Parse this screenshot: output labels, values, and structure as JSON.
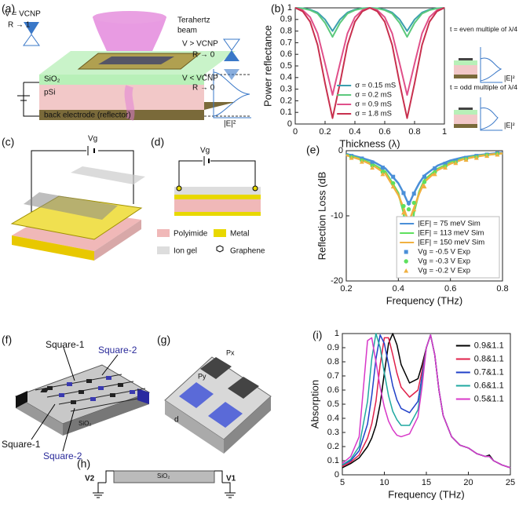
{
  "chart_data": [
    {
      "type": "line",
      "panel_label": "(b)",
      "xlabel": "Thickness (λ)",
      "ylabel": "Power reflectance",
      "x": [
        0,
        0.05,
        0.1,
        0.15,
        0.2,
        0.25,
        0.3,
        0.35,
        0.4,
        0.45,
        0.5,
        0.55,
        0.6,
        0.65,
        0.7,
        0.75,
        0.8,
        0.85,
        0.9,
        0.95,
        1
      ],
      "xlim": [
        0,
        1
      ],
      "xticks": [
        0,
        0.2,
        0.4,
        0.6,
        0.8,
        1
      ],
      "ylim": [
        0,
        1
      ],
      "yticks": [
        0,
        0.1,
        0.2,
        0.3,
        0.4,
        0.5,
        0.6,
        0.7,
        0.8,
        0.9,
        1
      ],
      "legend": "lower center",
      "series": [
        {
          "name": "σ = 0.15 mS",
          "color": "#3b9fae",
          "values": [
            1,
            0.997,
            0.985,
            0.96,
            0.9,
            0.8,
            0.9,
            0.96,
            0.985,
            0.997,
            1,
            0.997,
            0.985,
            0.96,
            0.9,
            0.8,
            0.9,
            0.96,
            0.985,
            0.997,
            1
          ]
        },
        {
          "name": "σ = 0.2 mS",
          "color": "#5cc97c",
          "values": [
            1,
            0.995,
            0.98,
            0.95,
            0.87,
            0.75,
            0.87,
            0.95,
            0.98,
            0.995,
            1,
            0.995,
            0.98,
            0.95,
            0.87,
            0.75,
            0.87,
            0.95,
            0.98,
            0.995,
            1
          ]
        },
        {
          "name": "σ = 0.9 mS",
          "color": "#e0508a",
          "values": [
            1,
            0.98,
            0.92,
            0.78,
            0.52,
            0.25,
            0.52,
            0.78,
            0.92,
            0.98,
            1,
            0.98,
            0.92,
            0.78,
            0.52,
            0.25,
            0.52,
            0.78,
            0.92,
            0.98,
            1
          ]
        },
        {
          "name": "σ = 1.8 mS",
          "color": "#c8304e",
          "values": [
            1,
            0.97,
            0.88,
            0.68,
            0.35,
            0.05,
            0.35,
            0.68,
            0.88,
            0.97,
            1,
            0.97,
            0.88,
            0.68,
            0.35,
            0.05,
            0.35,
            0.68,
            0.88,
            0.97,
            1
          ]
        }
      ],
      "annotations": [
        "t = even multiple of λ/4",
        "|E|²",
        "t = odd multiple of λ/4",
        "|E|²"
      ]
    },
    {
      "type": "line",
      "panel_label": "(e)",
      "xlabel": "Frequency (THz)",
      "ylabel": "Reflection Loss (dB",
      "xlim": [
        0.2,
        0.8
      ],
      "xticks": [
        0.2,
        0.4,
        0.6,
        0.8
      ],
      "ylim": [
        -20,
        0
      ],
      "yticks": [
        -20,
        -10,
        0
      ],
      "legend": "lower right",
      "series": [
        {
          "name": "|EF| = 75 meV Sim",
          "color": "#4a8fd8",
          "style": "line",
          "x": [
            0.2,
            0.25,
            0.3,
            0.35,
            0.4,
            0.42,
            0.44,
            0.46,
            0.48,
            0.5,
            0.55,
            0.6,
            0.65,
            0.7,
            0.75,
            0.8
          ],
          "values": [
            -0.5,
            -1,
            -1.6,
            -2.7,
            -5,
            -6.5,
            -8.3,
            -6.5,
            -5,
            -3.8,
            -2.3,
            -1.5,
            -1,
            -0.7,
            -0.5,
            -0.3
          ]
        },
        {
          "name": "|EF| = 113 meV Sim",
          "color": "#5ee05e",
          "style": "line",
          "x": [
            0.2,
            0.25,
            0.3,
            0.35,
            0.4,
            0.42,
            0.44,
            0.46,
            0.48,
            0.5,
            0.55,
            0.6,
            0.65,
            0.7,
            0.75,
            0.8
          ],
          "values": [
            -0.6,
            -1.2,
            -2,
            -3.2,
            -6.5,
            -9.5,
            -16.5,
            -9.5,
            -6.3,
            -4.5,
            -2.8,
            -1.8,
            -1.2,
            -0.8,
            -0.6,
            -0.4
          ]
        },
        {
          "name": "|EF| = 150 meV Sim",
          "color": "#f0b040",
          "style": "line",
          "x": [
            0.2,
            0.25,
            0.3,
            0.35,
            0.4,
            0.42,
            0.44,
            0.46,
            0.48,
            0.5,
            0.55,
            0.6,
            0.65,
            0.7,
            0.75,
            0.8
          ],
          "values": [
            -0.7,
            -1.3,
            -2.2,
            -3.5,
            -6.8,
            -8.8,
            -11,
            -8.8,
            -6.6,
            -4.8,
            -3,
            -2,
            -1.3,
            -0.9,
            -0.6,
            -0.4
          ]
        },
        {
          "name": "Vg = -0.5 V Exp",
          "color": "#4a8fd8",
          "style": "marker",
          "marker": "square",
          "x": [
            0.22,
            0.26,
            0.3,
            0.34,
            0.38,
            0.42,
            0.44,
            0.46,
            0.5,
            0.54,
            0.58,
            0.62,
            0.66,
            0.7,
            0.74,
            0.78
          ],
          "values": [
            -0.8,
            -1.2,
            -1.8,
            -2.6,
            -4,
            -6.5,
            -8,
            -6.6,
            -4,
            -2.7,
            -2,
            -1.5,
            -1.1,
            -0.8,
            -0.6,
            -0.4
          ]
        },
        {
          "name": "Vg = -0.3 V Exp",
          "color": "#5ee05e",
          "style": "marker",
          "marker": "circle",
          "x": [
            0.22,
            0.26,
            0.3,
            0.34,
            0.38,
            0.42,
            0.44,
            0.46,
            0.5,
            0.54,
            0.58,
            0.62,
            0.66,
            0.7,
            0.74,
            0.78
          ],
          "values": [
            -1,
            -1.5,
            -2.3,
            -3.3,
            -5,
            -8.5,
            -9,
            -8,
            -4.8,
            -3.3,
            -2.4,
            -1.8,
            -1.3,
            -1,
            -0.7,
            -0.5
          ]
        },
        {
          "name": "Vg = -0.2 V Exp",
          "color": "#f0b040",
          "style": "marker",
          "marker": "triangle",
          "x": [
            0.22,
            0.26,
            0.3,
            0.34,
            0.38,
            0.42,
            0.44,
            0.46,
            0.5,
            0.54,
            0.58,
            0.62,
            0.66,
            0.7,
            0.74,
            0.78
          ],
          "values": [
            -1.1,
            -1.7,
            -2.6,
            -3.6,
            -5.5,
            -9.5,
            -11,
            -9,
            -5.5,
            -3.6,
            -2.6,
            -1.9,
            -1.4,
            -1.1,
            -0.8,
            -0.6
          ]
        }
      ]
    },
    {
      "type": "line",
      "panel_label": "(i)",
      "xlabel": "Frequency (THz)",
      "ylabel": "Absorption",
      "x": [
        5,
        6,
        7,
        8,
        8.5,
        9,
        9.5,
        10,
        10.5,
        11,
        11.5,
        12,
        13,
        14,
        14.5,
        15,
        15.5,
        16,
        16.5,
        17,
        18,
        19,
        20,
        21,
        22,
        22.5,
        23,
        24,
        25
      ],
      "xlim": [
        5,
        25
      ],
      "xticks": [
        5,
        10,
        15,
        20,
        25
      ],
      "ylim": [
        0,
        1
      ],
      "yticks": [
        0,
        0.1,
        0.2,
        0.3,
        0.4,
        0.5,
        0.6,
        0.7,
        0.8,
        0.9,
        1
      ],
      "legend": "upper right",
      "series": [
        {
          "name": "0.9&1.1",
          "color": "#000000",
          "values": [
            0.05,
            0.08,
            0.12,
            0.2,
            0.26,
            0.35,
            0.5,
            0.72,
            0.93,
            1,
            0.92,
            0.78,
            0.65,
            0.68,
            0.78,
            0.9,
            0.99,
            0.85,
            0.6,
            0.42,
            0.27,
            0.21,
            0.19,
            0.15,
            0.13,
            0.14,
            0.1,
            0.07,
            0.05
          ]
        },
        {
          "name": "0.8&1.1",
          "color": "#e0204a",
          "values": [
            0.06,
            0.09,
            0.14,
            0.26,
            0.36,
            0.52,
            0.78,
            0.97,
            0.97,
            0.85,
            0.72,
            0.62,
            0.55,
            0.6,
            0.74,
            0.9,
            0.99,
            0.85,
            0.6,
            0.42,
            0.27,
            0.21,
            0.19,
            0.15,
            0.13,
            0.13,
            0.1,
            0.07,
            0.05
          ]
        },
        {
          "name": "0.7&1.1",
          "color": "#2040c8",
          "values": [
            0.07,
            0.1,
            0.17,
            0.36,
            0.56,
            0.82,
            0.99,
            0.93,
            0.78,
            0.63,
            0.53,
            0.47,
            0.44,
            0.52,
            0.7,
            0.9,
            0.99,
            0.85,
            0.6,
            0.42,
            0.27,
            0.21,
            0.19,
            0.15,
            0.13,
            0.13,
            0.1,
            0.07,
            0.05
          ]
        },
        {
          "name": "0.6&1.1",
          "color": "#1fa8a0",
          "values": [
            0.07,
            0.11,
            0.2,
            0.52,
            0.82,
            1,
            0.9,
            0.72,
            0.56,
            0.45,
            0.39,
            0.35,
            0.35,
            0.46,
            0.66,
            0.9,
            0.99,
            0.85,
            0.6,
            0.42,
            0.27,
            0.21,
            0.19,
            0.15,
            0.13,
            0.13,
            0.1,
            0.07,
            0.05
          ]
        },
        {
          "name": "0.5&1.1",
          "color": "#d838c8",
          "values": [
            0.08,
            0.13,
            0.27,
            0.95,
            0.97,
            0.8,
            0.62,
            0.48,
            0.38,
            0.32,
            0.28,
            0.27,
            0.29,
            0.41,
            0.63,
            0.9,
            0.99,
            0.85,
            0.6,
            0.42,
            0.27,
            0.21,
            0.19,
            0.15,
            0.13,
            0.13,
            0.1,
            0.07,
            0.05
          ]
        }
      ]
    }
  ],
  "diagrams": {
    "a": {
      "label": "(a)",
      "texts": [
        "V = VCNP",
        "R → 1",
        "Terahertz",
        "beam",
        "V > VCNP",
        "R → 0",
        "V < VCNP",
        "R → 0",
        "SiO₂",
        "pSi",
        "back electrode (reflector)",
        "|E|²"
      ]
    },
    "c": {
      "label": "(c)",
      "texts": [
        "Vg"
      ]
    },
    "d": {
      "label": "(d)",
      "texts": [
        "Vg",
        "Polyimide",
        "Metal",
        "Ion gel",
        "Graphene"
      ]
    },
    "f": {
      "label": "(f)",
      "texts": [
        "Square-1",
        "Square-2",
        "Square-1",
        "Square-2",
        "SiO₂"
      ]
    },
    "g": {
      "label": "(g)",
      "texts": [
        "Px",
        "Py",
        "d"
      ]
    },
    "h": {
      "label": "(h)",
      "texts": [
        "V2",
        "SiO₂",
        "V1"
      ]
    }
  }
}
